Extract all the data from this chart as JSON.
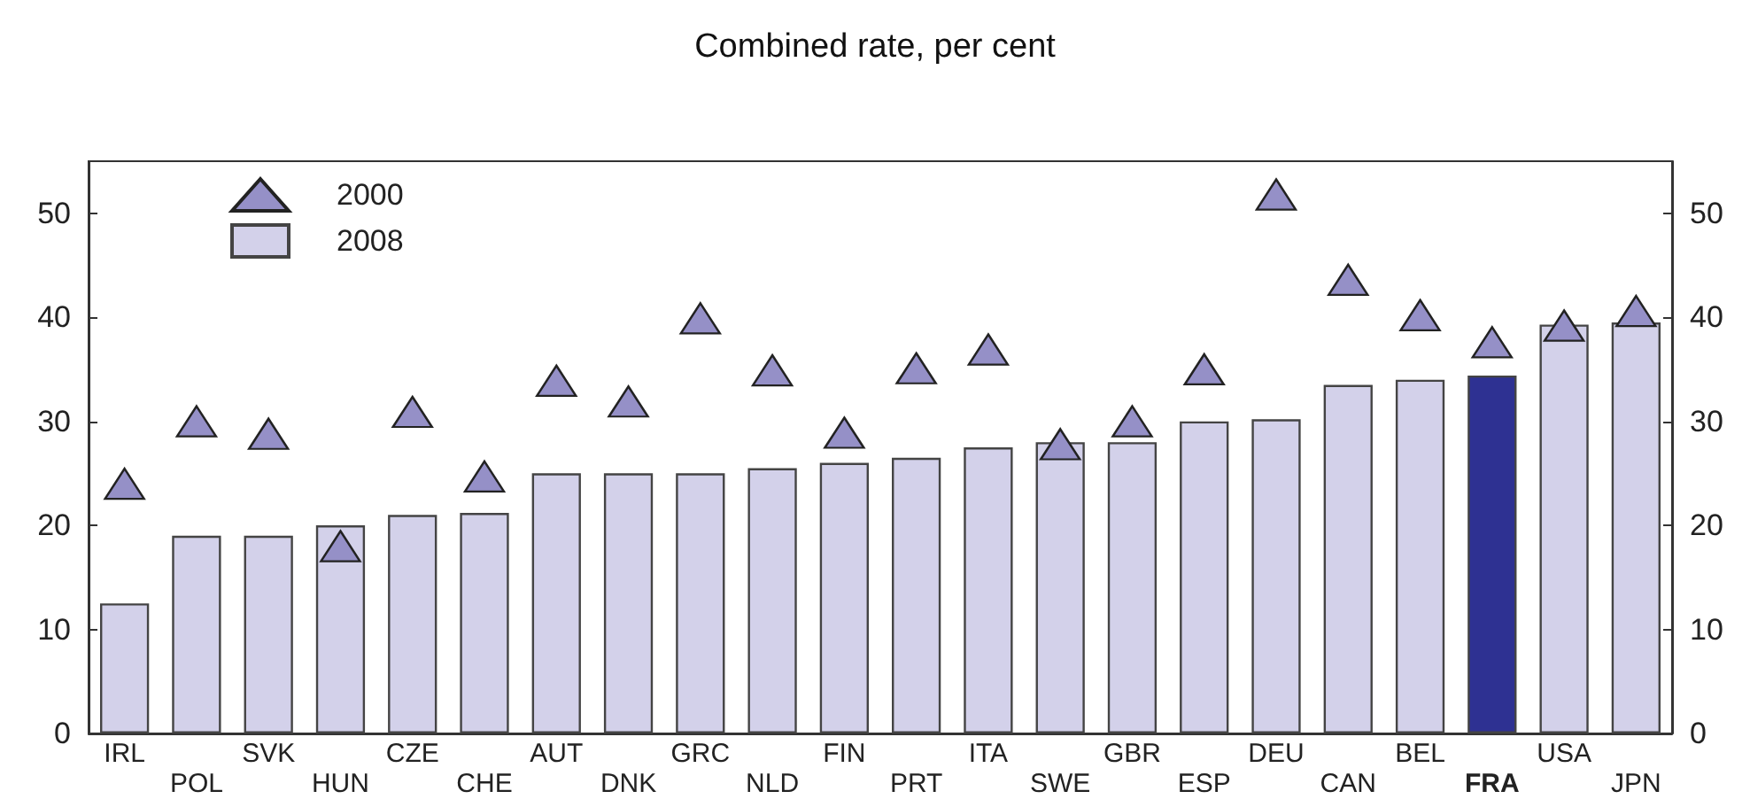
{
  "chart_data": {
    "type": "bar",
    "title": "Combined rate, per cent",
    "categories": [
      "IRL",
      "POL",
      "SVK",
      "HUN",
      "CZE",
      "CHE",
      "AUT",
      "DNK",
      "GRC",
      "NLD",
      "FIN",
      "PRT",
      "ITA",
      "SWE",
      "GBR",
      "ESP",
      "DEU",
      "CAN",
      "BEL",
      "FRA",
      "USA",
      "JPN"
    ],
    "series": [
      {
        "name": "2008",
        "color": "#d3d1ea",
        "colors": [
          "#d3d1ea",
          "#d3d1ea",
          "#d3d1ea",
          "#d3d1ea",
          "#d3d1ea",
          "#d3d1ea",
          "#d3d1ea",
          "#d3d1ea",
          "#d3d1ea",
          "#d3d1ea",
          "#d3d1ea",
          "#d3d1ea",
          "#d3d1ea",
          "#d3d1ea",
          "#d3d1ea",
          "#d3d1ea",
          "#d3d1ea",
          "#d3d1ea",
          "#d3d1ea",
          "#2e3192",
          "#d3d1ea",
          "#d3d1ea"
        ],
        "values": [
          12.5,
          19,
          19,
          20,
          21,
          21.2,
          25,
          25,
          25,
          25.5,
          26,
          26.5,
          27.5,
          28,
          28,
          30,
          30.2,
          33.5,
          34,
          34.4,
          39.3,
          39.5
        ]
      },
      {
        "name": "2000",
        "type": "scatter",
        "marker": "triangle",
        "color": "#9590c7",
        "values": [
          24,
          30,
          28.8,
          18,
          30.9,
          24.7,
          33.9,
          31.9,
          39.9,
          34.9,
          28.9,
          35.1,
          36.9,
          27.8,
          30,
          35,
          51.8,
          43.6,
          40.2,
          37.6,
          39.2,
          40.6
        ]
      }
    ],
    "ylim": [
      0,
      55
    ],
    "yticks": [
      0,
      10,
      20,
      30,
      40,
      50
    ],
    "y2lim": [
      0,
      55
    ],
    "y2ticks": [
      0,
      10,
      20,
      30,
      40,
      50
    ],
    "grid": false,
    "legend": "top left"
  }
}
